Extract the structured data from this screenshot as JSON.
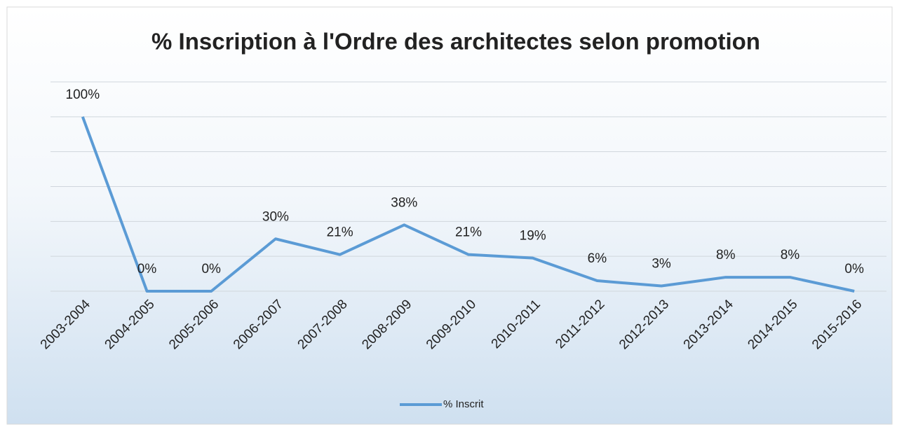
{
  "chart_data": {
    "type": "line",
    "title": "% Inscription à l'Ordre des architectes selon promotion",
    "categories": [
      "2003-2004",
      "2004-2005",
      "2005-2006",
      "2006-2007",
      "2007-2008",
      "2008-2009",
      "2009-2010",
      "2010-2011",
      "2011-2012",
      "2012-2013",
      "2013-2014",
      "2014-2015",
      "2015-2016"
    ],
    "series": [
      {
        "name": "% Inscrit",
        "color": "#5b9bd5",
        "values": [
          100,
          0,
          0,
          30,
          21,
          38,
          21,
          19,
          6,
          3,
          8,
          8,
          0
        ],
        "value_labels": [
          "100%",
          "0%",
          "0%",
          "30%",
          "21%",
          "38%",
          "21%",
          "19%",
          "6%",
          "3%",
          "8%",
          "8%",
          "0%"
        ]
      }
    ],
    "ylim": [
      0,
      120
    ],
    "yticks": [
      0,
      20,
      40,
      60,
      80,
      100,
      120
    ],
    "grid": true,
    "legend": "bottom"
  }
}
